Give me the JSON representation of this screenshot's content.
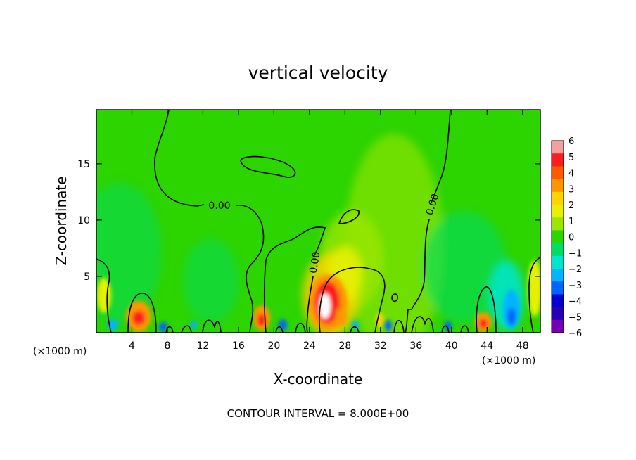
{
  "chart_data": {
    "type": "heatmap",
    "title": "vertical velocity",
    "xlabel": "X-coordinate",
    "ylabel": "Z-coordinate",
    "x_unit_left": "(×1000 m)",
    "x_unit_right": "(×1000 m)",
    "footer": "CONTOUR INTERVAL = 8.000E+00",
    "xlim": [
      0,
      50
    ],
    "ylim": [
      0,
      19.8
    ],
    "x_ticks": [
      4,
      8,
      12,
      16,
      20,
      24,
      28,
      32,
      36,
      40,
      44,
      48
    ],
    "y_ticks": [
      5,
      10,
      15
    ],
    "colorbar": {
      "tick_labels": [
        "6",
        "5",
        "4",
        "3",
        "2",
        "1",
        "0",
        "−1",
        "−2",
        "−3",
        "−4",
        "−5",
        "−6"
      ],
      "colors": [
        "#f5a0a0",
        "#ff1e1e",
        "#ff5a00",
        "#ff9600",
        "#ffd200",
        "#e6f000",
        "#9be600",
        "#2cd400",
        "#00dc64",
        "#00e6c8",
        "#00b4ff",
        "#0064ff",
        "#0000d2",
        "#2800b4",
        "#7800b4"
      ]
    },
    "contour_labels": [
      "0.00",
      "0.00",
      "0.00"
    ],
    "contour_interval": 8.0,
    "features": [
      {
        "kind": "updraft",
        "x": 26,
        "z": 2.5,
        "w": 6
      },
      {
        "kind": "updraft",
        "x": 5,
        "z": 1.5,
        "w": 3
      },
      {
        "kind": "updraft",
        "x": 18.5,
        "z": 1.3,
        "w": 3
      },
      {
        "kind": "updraft",
        "x": 43.5,
        "z": 1.0,
        "w": 3
      },
      {
        "kind": "downdraft",
        "x": 46.5,
        "z": 2.0,
        "w": -2
      },
      {
        "kind": "downdraft",
        "x": 20.5,
        "z": 0.6,
        "w": -3
      },
      {
        "kind": "downdraft",
        "x": 7.5,
        "z": 0.5,
        "w": -3
      }
    ]
  }
}
